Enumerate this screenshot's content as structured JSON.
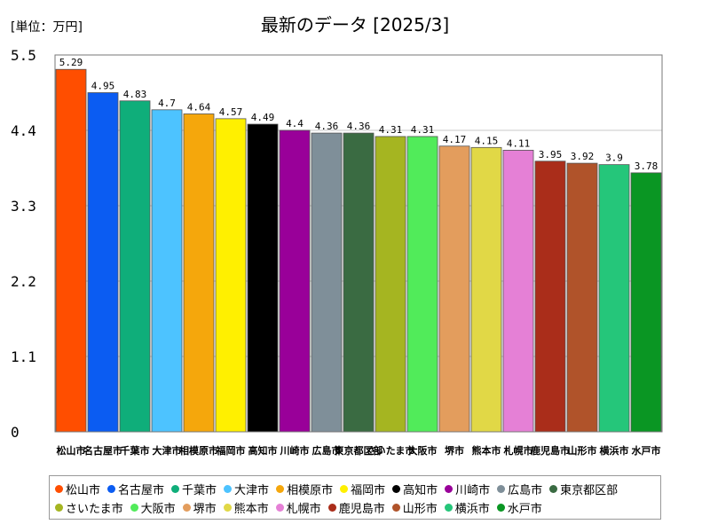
{
  "header": {
    "unit_label": "[単位：万円]",
    "title": "最新のデータ [2025/3]"
  },
  "chart_data": {
    "type": "bar",
    "title": "最新のデータ [2025/3]",
    "ylabel": "[単位：万円]",
    "xlabel": "",
    "ylim": [
      0,
      5.5
    ],
    "yticks": [
      0,
      1.1,
      2.2,
      3.3,
      4.4,
      5.5
    ],
    "ytick_labels": [
      "0",
      "1.1",
      "2.2",
      "3.3",
      "4.4",
      "5.5"
    ],
    "grid": true,
    "legend_position": "bottom",
    "categories": [
      "松山市",
      "名古屋市",
      "千葉市",
      "大津市",
      "相模原市",
      "福岡市",
      "高知市",
      "川崎市",
      "広島市",
      "東京都区部",
      "さいたま市",
      "大阪市",
      "堺市",
      "熊本市",
      "札幌市",
      "鹿児島市",
      "山形市",
      "横浜市",
      "水戸市"
    ],
    "values": [
      5.29,
      4.95,
      4.83,
      4.7,
      4.64,
      4.57,
      4.49,
      4.4,
      4.36,
      4.36,
      4.31,
      4.31,
      4.17,
      4.15,
      4.11,
      3.95,
      3.92,
      3.9,
      3.78
    ],
    "value_labels": [
      "5.29",
      "4.95",
      "4.83",
      "4.7",
      "4.64",
      "4.57",
      "4.49",
      "4.4",
      "4.36",
      "4.36",
      "4.31",
      "4.31",
      "4.17",
      "4.15",
      "4.11",
      "3.95",
      "3.92",
      "3.9",
      "3.78"
    ],
    "colors": [
      "#ff4e00",
      "#0b5cf2",
      "#0fae7a",
      "#4dc3ff",
      "#f5a70c",
      "#fff000",
      "#000000",
      "#990099",
      "#7f8f99",
      "#3a6b42",
      "#a5b521",
      "#51eb5a",
      "#e39d5d",
      "#e1d846",
      "#e580d6",
      "#aa2d1a",
      "#b0532a",
      "#25c67a",
      "#0a9623"
    ]
  }
}
